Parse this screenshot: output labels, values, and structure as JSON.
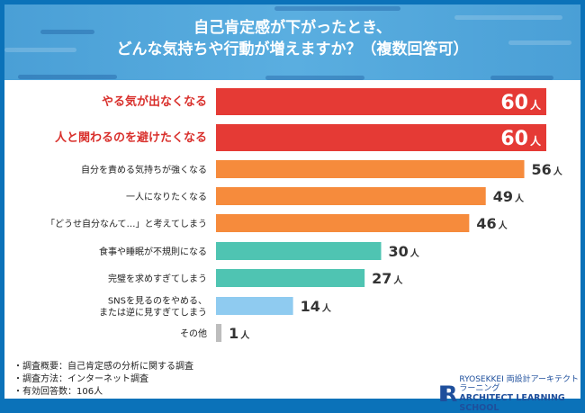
{
  "header": {
    "title_line1": "自己肯定感が下がったとき、",
    "title_line2": "どんな気持ちや行動が増えますか？（複数回答可）"
  },
  "chart_data": {
    "type": "bar",
    "orientation": "horizontal",
    "unit": "人",
    "categories": [
      "やる気が出なくなる",
      "人と関わるのを避けたくなる",
      "自分を責める気持ちが強くなる",
      "一人になりたくなる",
      "「どうせ自分なんて…」と考えてしまう",
      "食事や睡眠が不規則になる",
      "完璧を求めすぎてしまう",
      "SNSを見るのをやめる、\nまたは逆に見すぎてしまう",
      "その他"
    ],
    "values": [
      60,
      60,
      56,
      49,
      46,
      30,
      27,
      14,
      1
    ],
    "colors": [
      "#e53a35",
      "#e53a35",
      "#f68b3c",
      "#f68b3c",
      "#f68b3c",
      "#4fc4b2",
      "#4fc4b2",
      "#8fcbf0",
      "#bdbdbd"
    ],
    "xlim": [
      0,
      60
    ]
  },
  "notes": [
    "・調査概要：自己肯定感の分析に関する調査",
    "・調査方法：インターネット調査",
    "・有効回答数：106人"
  ],
  "logo": {
    "mark": "IR",
    "line1": "RYOSEKKEI 両設計アーキテクトラーニング",
    "line2": "ARCHITECT LEARNING SCHOOL"
  }
}
